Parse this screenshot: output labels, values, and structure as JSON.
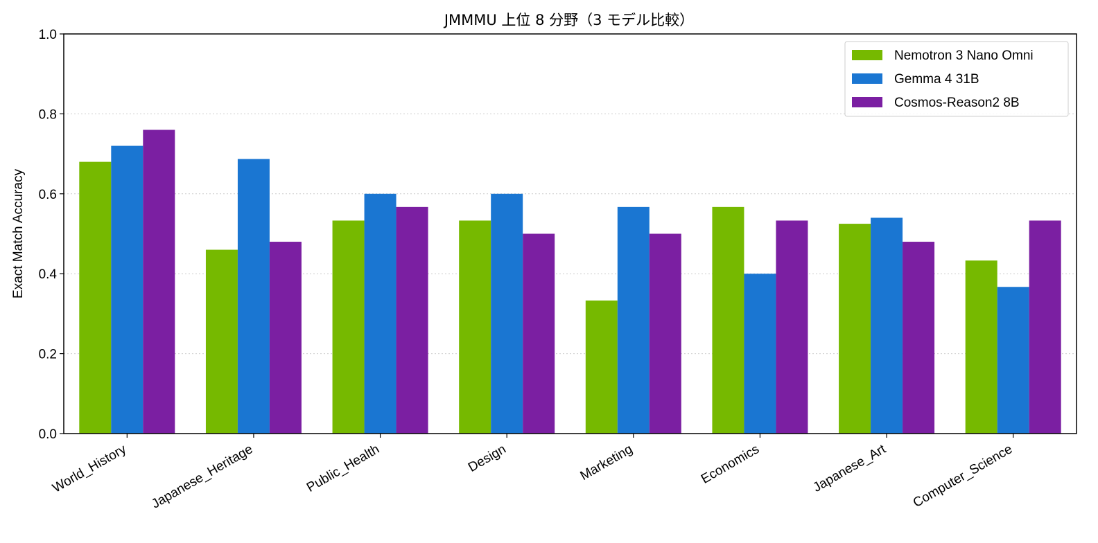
{
  "chart_data": {
    "type": "bar",
    "title": "JMMMU 上位 8 分野（3 モデル比較）",
    "xlabel": "",
    "ylabel": "Exact Match Accuracy",
    "ylim": [
      0,
      1.0
    ],
    "yticks": [
      "0.0",
      "0.2",
      "0.4",
      "0.6",
      "0.8",
      "1.0"
    ],
    "grid": "horizontal dotted",
    "legend_position": "top-right",
    "categories": [
      "World_History",
      "Japanese_Heritage",
      "Public_Health",
      "Design",
      "Marketing",
      "Economics",
      "Japanese_Art",
      "Computer_Science"
    ],
    "series": [
      {
        "name": "Nemotron 3 Nano Omni",
        "color": "#76b900",
        "values": [
          0.68,
          0.46,
          0.533,
          0.533,
          0.333,
          0.567,
          0.525,
          0.433
        ]
      },
      {
        "name": "Gemma 4 31B",
        "color": "#1a76d2",
        "values": [
          0.72,
          0.687,
          0.6,
          0.6,
          0.567,
          0.4,
          0.54,
          0.367
        ]
      },
      {
        "name": "Cosmos-Reason2 8B",
        "color": "#7b1fa2",
        "values": [
          0.76,
          0.48,
          0.567,
          0.5,
          0.5,
          0.533,
          0.48,
          0.533
        ]
      }
    ]
  }
}
